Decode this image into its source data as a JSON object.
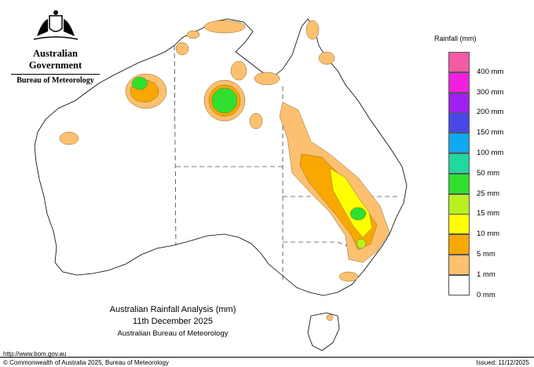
{
  "header": {
    "government": "Australian Government",
    "bureau": "Bureau of Meteorology"
  },
  "map": {
    "title": "Australian Rainfall Analysis (mm)",
    "date": "11th December 2025",
    "source": "Australian Bureau of Meteorology"
  },
  "legend": {
    "title": "Rainfall (mm)",
    "items": [
      {
        "label": "",
        "color": "#f35ba4"
      },
      {
        "label": "400 mm",
        "color": "#f020e0"
      },
      {
        "label": "300 mm",
        "color": "#a020f0"
      },
      {
        "label": "200 mm",
        "color": "#4848e8"
      },
      {
        "label": "150 mm",
        "color": "#10a8f0"
      },
      {
        "label": "100 mm",
        "color": "#20d8a0"
      },
      {
        "label": "50 mm",
        "color": "#30e030"
      },
      {
        "label": "25 mm",
        "color": "#b8f020"
      },
      {
        "label": "15 mm",
        "color": "#ffff00"
      },
      {
        "label": "10 mm",
        "color": "#f8a800"
      },
      {
        "label": "5 mm",
        "color": "#fcc070"
      },
      {
        "label": "1 mm",
        "color": "#ffffff"
      },
      {
        "label": "0 mm",
        "color": ""
      }
    ]
  },
  "footer": {
    "url": "http://www.bom.gov.au",
    "copyright": "© Commonwealth of Australia 2025, Bureau of Meteorology",
    "issued": "Issued: 11/12/2025"
  }
}
